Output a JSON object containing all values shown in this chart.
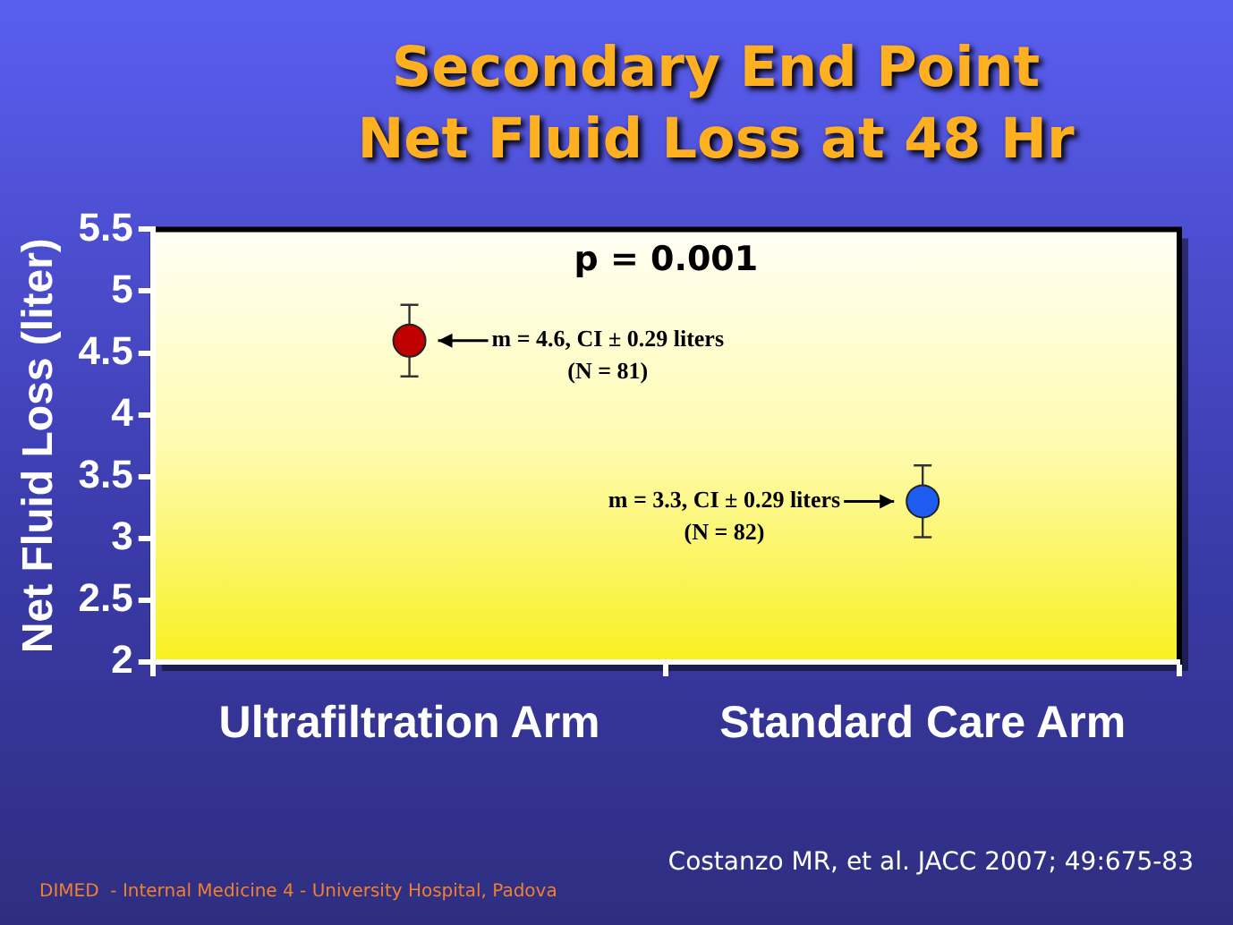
{
  "chart_data": {
    "type": "scatter",
    "title": "Secondary End Point",
    "subtitle": "Net Fluid Loss at 48 Hr",
    "ylabel": "Net Fluid Loss (liter)",
    "categories": [
      "Ultrafiltration Arm",
      "Standard Care Arm"
    ],
    "series": [
      {
        "values": [
          4.6,
          3.3
        ],
        "colors": [
          "#c00000",
          "#1e5cf0"
        ],
        "errors": [
          0.29,
          0.29
        ]
      }
    ],
    "ylim": [
      2,
      5.5
    ],
    "yticks": [
      2,
      2.5,
      3,
      3.5,
      4,
      4.5,
      5,
      5.5
    ],
    "grid": false,
    "legend": false,
    "marker": "circle",
    "annotations": [
      "p = 0.001",
      "m = 4.6, CI ± 0.29 liters\n(N = 81)",
      "m = 3.3, CI ± 0.29 liters\n(N = 82)",
      "Costanzo MR, et al. JACC 2007; 49:675-83",
      "DIMED  - Internal Medicine 4 - University Hospital, Padova"
    ]
  }
}
